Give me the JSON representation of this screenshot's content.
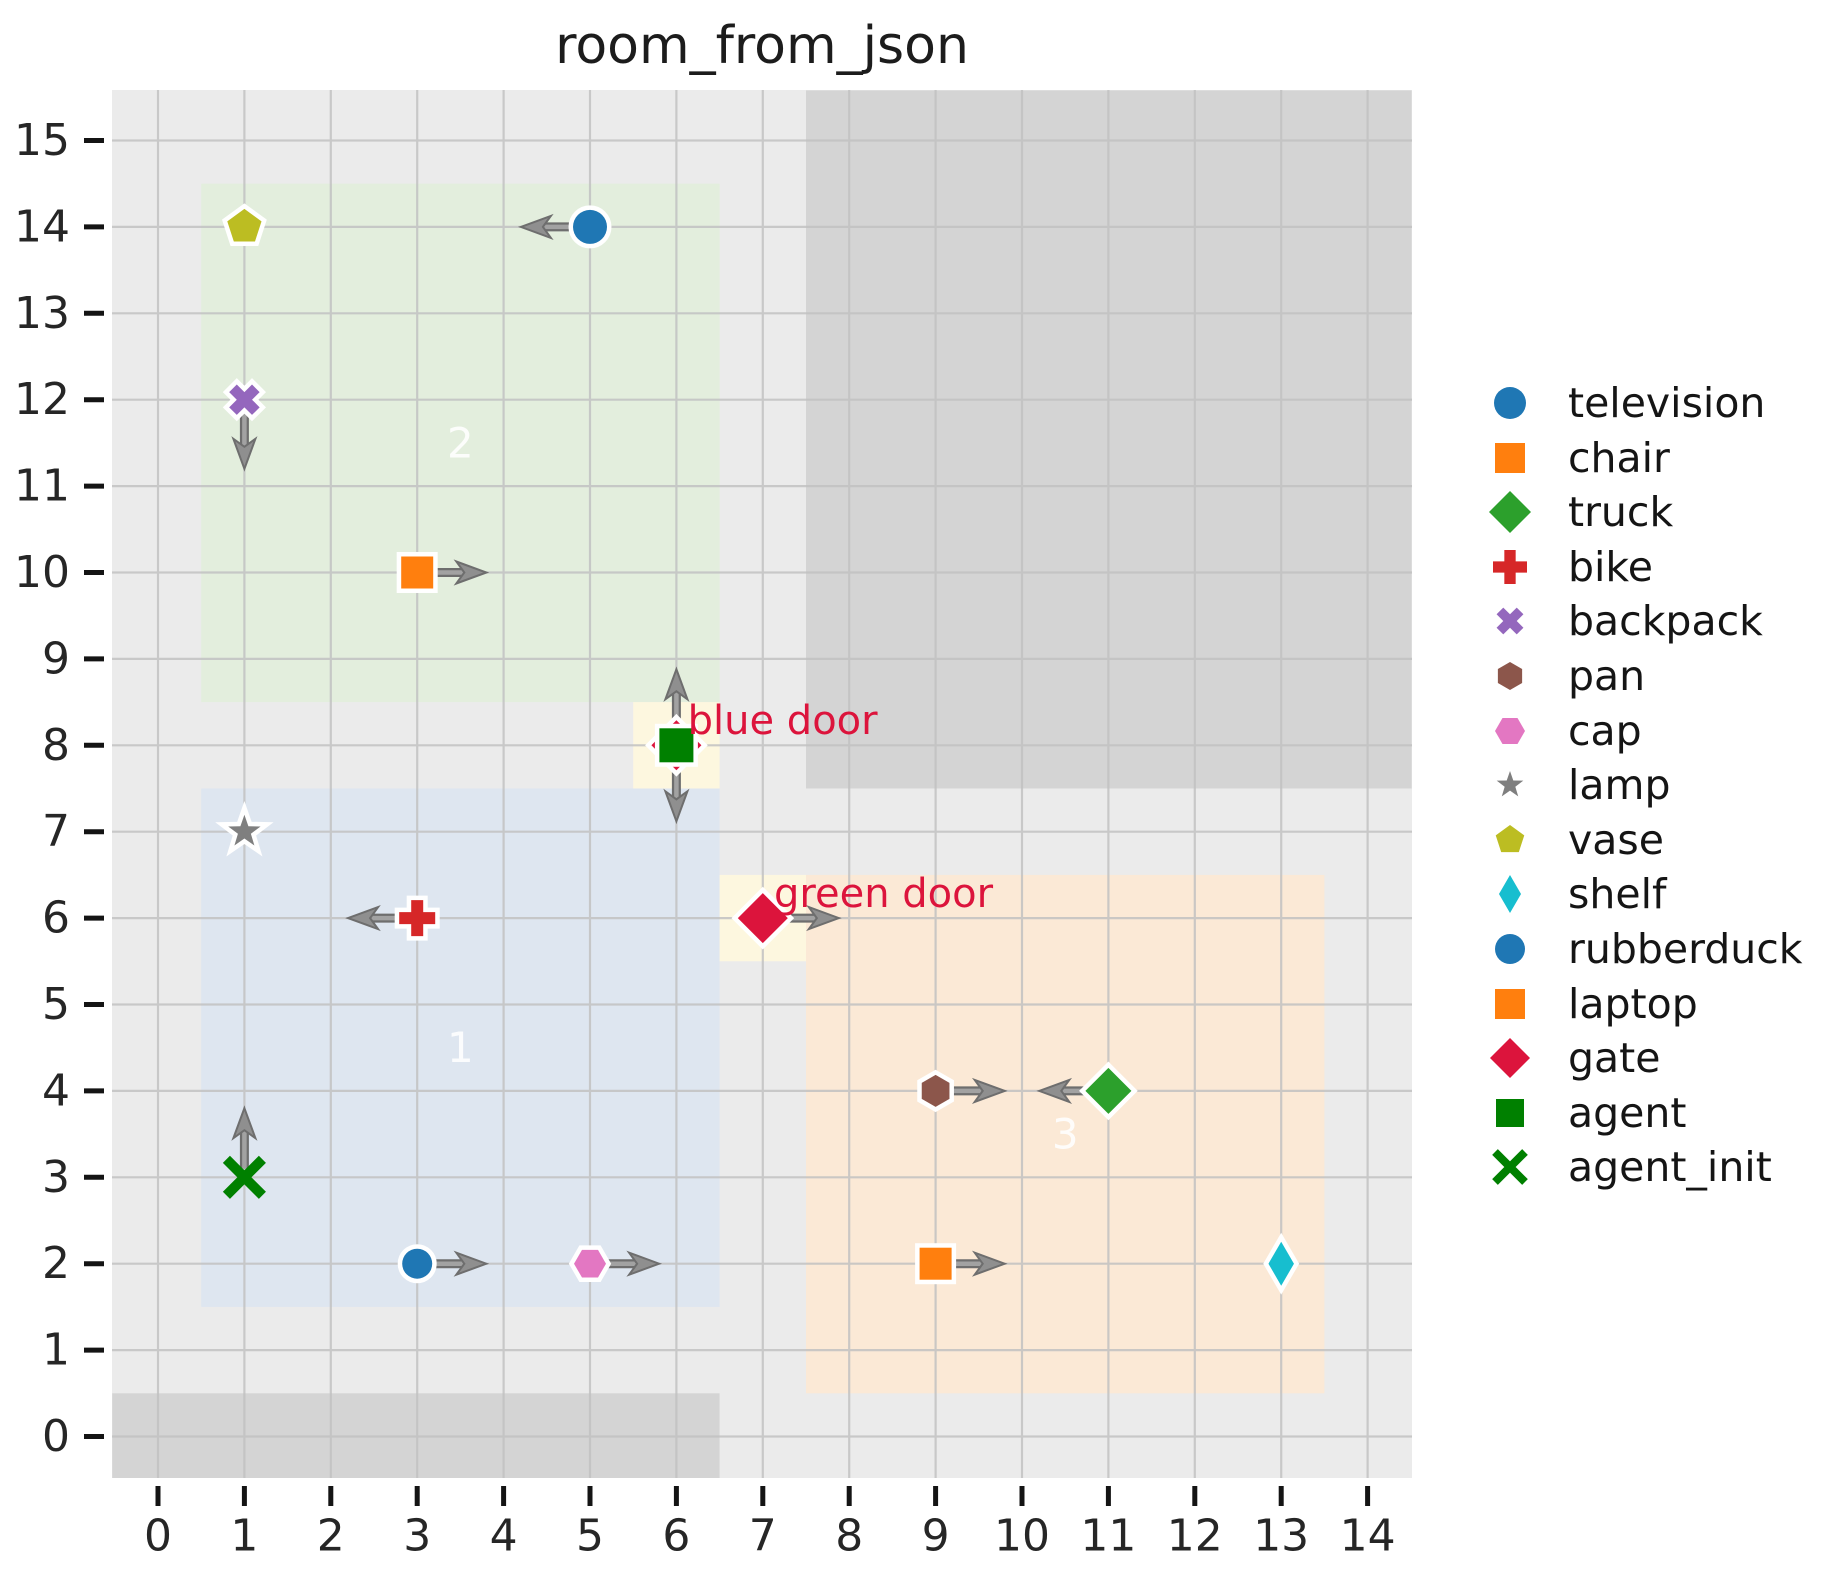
{
  "title": "room_from_json",
  "colors": {
    "figure_bg": "#ffffff",
    "plot_bg": "#ebebeb",
    "wall": "#d4d4d4",
    "grid": "#c2c2c2",
    "tick_text": "#262626",
    "door_text": "#dc143c",
    "room_label_text": "#ffffff",
    "arrow_outer": "#6e6e6e",
    "arrow_inner": "#a2a2a2",
    "arrow_head": "#8f8f8f"
  },
  "chart_data": {
    "type": "scatter",
    "title": "room_from_json",
    "xlabel": "",
    "ylabel": "",
    "xlim": [
      -0.53,
      14.51
    ],
    "ylim": [
      -0.48,
      15.58
    ],
    "grid": true,
    "legend_position": "right-outside",
    "x_ticks": [
      "0",
      "1",
      "2",
      "3",
      "4",
      "5",
      "6",
      "7",
      "8",
      "9",
      "10",
      "11",
      "12",
      "13",
      "14"
    ],
    "y_ticks": [
      "0",
      "1",
      "2",
      "3",
      "4",
      "5",
      "6",
      "7",
      "8",
      "9",
      "10",
      "11",
      "12",
      "13",
      "14",
      "15"
    ],
    "walls": [
      {
        "name": "wall-top-right",
        "x": [
          7.5,
          14.51
        ],
        "y": [
          7.5,
          15.58
        ]
      },
      {
        "name": "wall-bottom-left",
        "x": [
          -0.53,
          6.5
        ],
        "y": [
          -0.48,
          0.5
        ]
      }
    ],
    "rooms": [
      {
        "id": "1",
        "x": [
          0.5,
          6.5
        ],
        "y": [
          1.5,
          7.5
        ],
        "fill": "#dee6f0",
        "label": "1",
        "label_xy": [
          3.5,
          4.5
        ]
      },
      {
        "id": "2",
        "x": [
          0.5,
          6.5
        ],
        "y": [
          8.5,
          14.5
        ],
        "fill": "#e3eedd",
        "label": "2",
        "label_xy": [
          3.5,
          11.5
        ]
      },
      {
        "id": "3",
        "x": [
          7.5,
          13.5
        ],
        "y": [
          0.5,
          6.5
        ],
        "fill": "#fbe9d6",
        "label": "3",
        "label_xy": [
          10.5,
          3.5
        ]
      }
    ],
    "doors": [
      {
        "name": "blue door",
        "x": 6,
        "y": 8,
        "cell": [
          5.5,
          6.5,
          7.5,
          8.5
        ],
        "cell_fill": "#fdf7df",
        "marker": "diamond",
        "color": "#dc143c",
        "size": 25,
        "arrows": [
          "up",
          "down"
        ],
        "label_xy": [
          6.13,
          8.28
        ]
      },
      {
        "name": "green door",
        "x": 7,
        "y": 6,
        "cell": [
          6.5,
          7.5,
          5.5,
          6.5
        ],
        "cell_fill": "#fdf7df",
        "marker": "diamond",
        "color": "#dc143c",
        "size": 25,
        "arrows": [
          "right"
        ],
        "label_xy": [
          7.13,
          6.28
        ]
      }
    ],
    "objects": [
      {
        "name": "television",
        "x": 5,
        "y": 14,
        "marker": "circle",
        "color": "#1f77b4",
        "size": 17,
        "arrow": "left"
      },
      {
        "name": "chair",
        "x": 3,
        "y": 10,
        "marker": "square",
        "color": "#ff7f0e",
        "size": 16,
        "arrow": "right"
      },
      {
        "name": "truck",
        "x": 11,
        "y": 4,
        "marker": "diamond",
        "color": "#2ca02c",
        "size": 23,
        "arrow": "left"
      },
      {
        "name": "bike",
        "x": 3,
        "y": 6,
        "marker": "plus",
        "color": "#d62728",
        "size": 18,
        "arrow": "left"
      },
      {
        "name": "backpack",
        "x": 1,
        "y": 12,
        "marker": "x-filled",
        "color": "#9467bd",
        "size": 17,
        "arrow": "down"
      },
      {
        "name": "pan",
        "x": 9,
        "y": 4,
        "marker": "hexagon",
        "color": "#8c564b",
        "size": 16,
        "arrow": "right"
      },
      {
        "name": "cap",
        "x": 5,
        "y": 2,
        "marker": "hexagon-flat",
        "color": "#e377c2",
        "size": 16,
        "arrow": "right"
      },
      {
        "name": "lamp",
        "x": 1,
        "y": 7,
        "marker": "star",
        "color": "#7f7f7f",
        "size": 17,
        "arrow": null
      },
      {
        "name": "vase",
        "x": 1,
        "y": 14,
        "marker": "pentagon",
        "color": "#bcbd22",
        "size": 18,
        "arrow": null
      },
      {
        "name": "shelf",
        "x": 13,
        "y": 2,
        "marker": "thin-diamond",
        "color": "#17becf",
        "size": 22,
        "arrow": null
      },
      {
        "name": "rubberduck",
        "x": 3,
        "y": 2,
        "marker": "circle",
        "color": "#1f77b4",
        "size": 15,
        "arrow": "right"
      },
      {
        "name": "laptop",
        "x": 9,
        "y": 2,
        "marker": "square",
        "color": "#ff7f0e",
        "size": 16,
        "arrow": "right"
      },
      {
        "name": "agent",
        "x": 6,
        "y": 8,
        "marker": "square",
        "color": "#008000",
        "size": 17,
        "arrow": null
      },
      {
        "name": "agent_init",
        "x": 1,
        "y": 3,
        "marker": "x-stroke",
        "color": "#008000",
        "size": 18,
        "lw": 10,
        "arrow": "up"
      }
    ]
  },
  "legend": {
    "items": [
      {
        "label": "television",
        "marker": "circle",
        "color": "#1f77b4",
        "size": 16
      },
      {
        "label": "chair",
        "marker": "square",
        "color": "#ff7f0e",
        "size": 15
      },
      {
        "label": "truck",
        "marker": "diamond",
        "color": "#2ca02c",
        "size": 21
      },
      {
        "label": "bike",
        "marker": "plus",
        "color": "#d62728",
        "size": 17
      },
      {
        "label": "backpack",
        "marker": "x-filled",
        "color": "#9467bd",
        "size": 15
      },
      {
        "label": "pan",
        "marker": "hexagon",
        "color": "#8c564b",
        "size": 14
      },
      {
        "label": "cap",
        "marker": "hexagon-flat",
        "color": "#e377c2",
        "size": 15
      },
      {
        "label": "lamp",
        "marker": "star",
        "color": "#7f7f7f",
        "size": 14
      },
      {
        "label": "vase",
        "marker": "pentagon",
        "color": "#bcbd22",
        "size": 15
      },
      {
        "label": "shelf",
        "marker": "thin-diamond",
        "color": "#17becf",
        "size": 19
      },
      {
        "label": "rubberduck",
        "marker": "circle",
        "color": "#1f77b4",
        "size": 15
      },
      {
        "label": "laptop",
        "marker": "square",
        "color": "#ff7f0e",
        "size": 15
      },
      {
        "label": "gate",
        "marker": "diamond",
        "color": "#dc143c",
        "size": 20
      },
      {
        "label": "agent",
        "marker": "square",
        "color": "#008000",
        "size": 14
      },
      {
        "label": "agent_init",
        "marker": "x-stroke",
        "color": "#008000",
        "size": 15,
        "lw": 8
      }
    ]
  }
}
